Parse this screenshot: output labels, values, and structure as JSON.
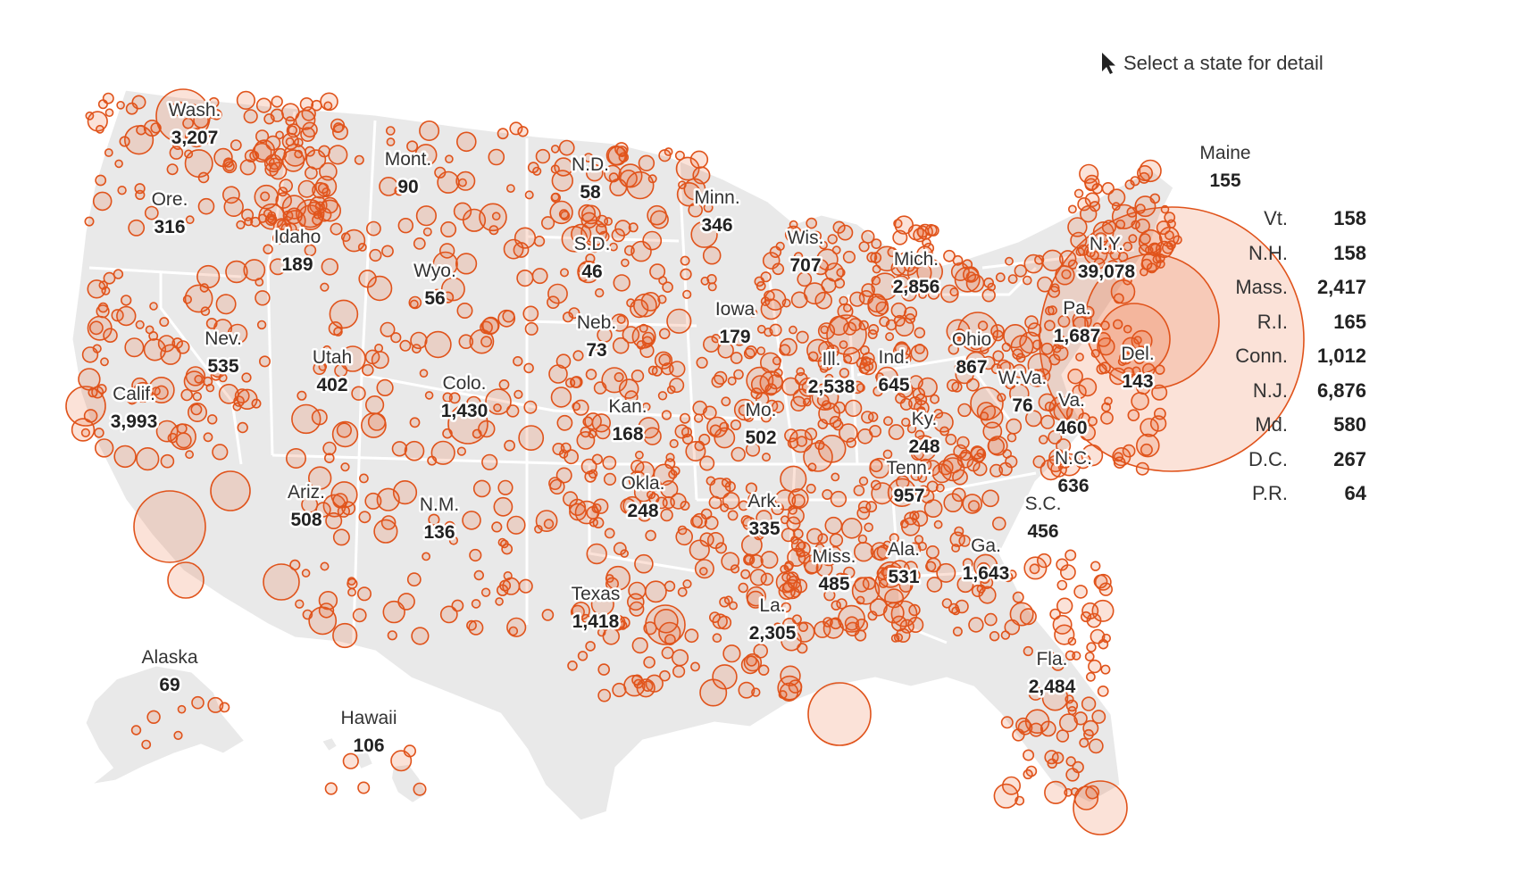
{
  "hint": {
    "icon": "cursor-arrow-icon",
    "text": "Select a state for detail"
  },
  "colors": {
    "land": "#e9e9e9",
    "border": "#ffffff",
    "dot_stroke": "#e0531b",
    "dot_fill": "rgba(232,95,40,0.18)"
  },
  "states": [
    {
      "name": "Wash.",
      "value": "3,207"
    },
    {
      "name": "Ore.",
      "value": "316"
    },
    {
      "name": "Calif.",
      "value": "3,993"
    },
    {
      "name": "Nev.",
      "value": "535"
    },
    {
      "name": "Idaho",
      "value": "189"
    },
    {
      "name": "Mont.",
      "value": "90"
    },
    {
      "name": "Wyo.",
      "value": "56"
    },
    {
      "name": "Utah",
      "value": "402"
    },
    {
      "name": "Ariz.",
      "value": "508"
    },
    {
      "name": "Colo.",
      "value": "1,430"
    },
    {
      "name": "N.M.",
      "value": "136"
    },
    {
      "name": "N.D.",
      "value": "58"
    },
    {
      "name": "S.D.",
      "value": "46"
    },
    {
      "name": "Neb.",
      "value": "73"
    },
    {
      "name": "Kan.",
      "value": "168"
    },
    {
      "name": "Okla.",
      "value": "248"
    },
    {
      "name": "Texas",
      "value": "1,418"
    },
    {
      "name": "Minn.",
      "value": "346"
    },
    {
      "name": "Iowa",
      "value": "179"
    },
    {
      "name": "Mo.",
      "value": "502"
    },
    {
      "name": "Ark.",
      "value": "335"
    },
    {
      "name": "La.",
      "value": "2,305"
    },
    {
      "name": "Wis.",
      "value": "707"
    },
    {
      "name": "Ill.",
      "value": "2,538"
    },
    {
      "name": "Mich.",
      "value": "2,856"
    },
    {
      "name": "Ind.",
      "value": "645"
    },
    {
      "name": "Ohio",
      "value": "867"
    },
    {
      "name": "Ky.",
      "value": "248"
    },
    {
      "name": "Tenn.",
      "value": "957"
    },
    {
      "name": "Miss.",
      "value": "485"
    },
    {
      "name": "Ala.",
      "value": "531"
    },
    {
      "name": "Ga.",
      "value": "1,643"
    },
    {
      "name": "Fla.",
      "value": "2,484"
    },
    {
      "name": "S.C.",
      "value": "456"
    },
    {
      "name": "N.C.",
      "value": "636"
    },
    {
      "name": "Va.",
      "value": "460"
    },
    {
      "name": "W.Va.",
      "value": "76"
    },
    {
      "name": "Pa.",
      "value": "1,687"
    },
    {
      "name": "N.Y.",
      "value": "39,078"
    },
    {
      "name": "Del.",
      "value": "143"
    },
    {
      "name": "Maine",
      "value": "155"
    },
    {
      "name": "Alaska",
      "value": "69"
    },
    {
      "name": "Hawaii",
      "value": "106"
    }
  ],
  "side_list": [
    {
      "name": "Vt.",
      "value": "158"
    },
    {
      "name": "N.H.",
      "value": "158"
    },
    {
      "name": "Mass.",
      "value": "2,417"
    },
    {
      "name": "R.I.",
      "value": "165"
    },
    {
      "name": "Conn.",
      "value": "1,012"
    },
    {
      "name": "N.J.",
      "value": "6,876"
    },
    {
      "name": "Md.",
      "value": "580"
    },
    {
      "name": "D.C.",
      "value": "267"
    },
    {
      "name": "P.R.",
      "value": "64"
    }
  ]
}
